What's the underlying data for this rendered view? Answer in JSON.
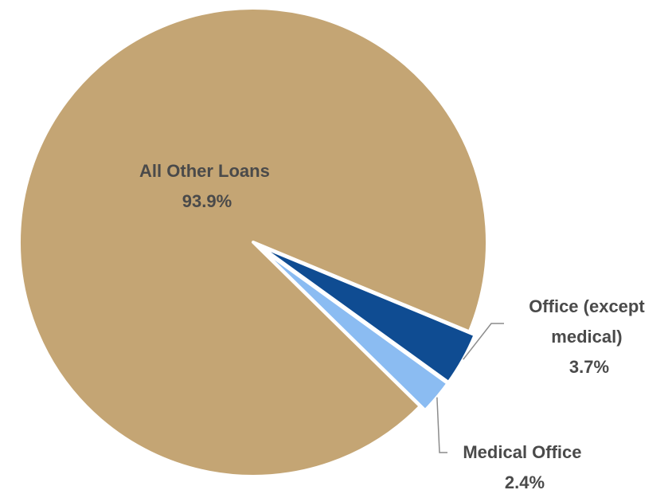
{
  "chart_data": {
    "type": "pie",
    "title": "",
    "slices": [
      {
        "label_lines": [
          "All Other Loans"
        ],
        "value_label": "93.9%",
        "value": 93.9,
        "color": "#c4a574"
      },
      {
        "label_lines": [
          "Office (except",
          "medical)"
        ],
        "value_label": "3.7%",
        "value": 3.7,
        "color": "#0f4c92"
      },
      {
        "label_lines": [
          "Medical Office"
        ],
        "value_label": "2.4%",
        "value": 2.4,
        "color": "#8bbcf2"
      }
    ],
    "legend": "none",
    "labels": "data labels with leader lines"
  }
}
